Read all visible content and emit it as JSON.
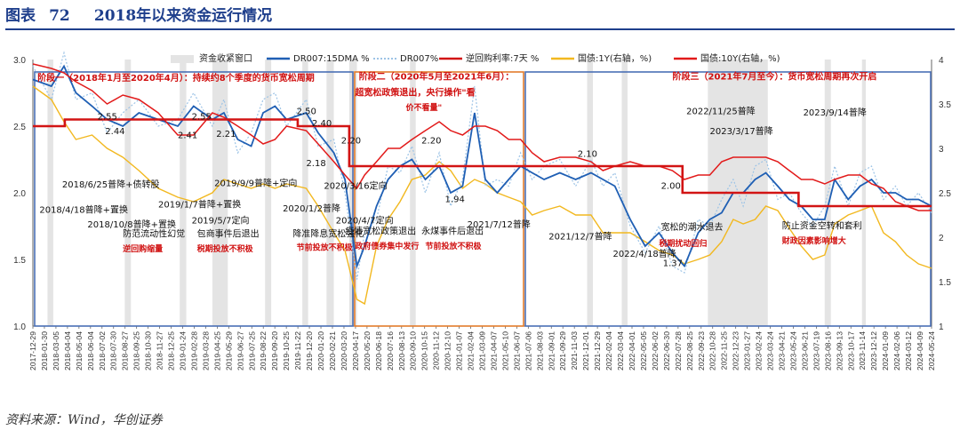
{
  "header": {
    "label": "图表",
    "number": "72",
    "title": "2018年以来资金运行情况"
  },
  "source": "资料来源：Wind，华创证券",
  "chart_data": {
    "type": "line",
    "legend": [
      "资金收紧窗口",
      "DR007:15DMA %",
      "DR007%",
      "逆回购利率:7天 %",
      "国债:1Y(右轴，%)",
      "国债:10Y(右轴，%)"
    ],
    "ylim_left": [
      1.0,
      3.0
    ],
    "yticks_left": [
      "3.0",
      "2.5",
      "2.0",
      "1.5",
      "1.0"
    ],
    "ylim_right": [
      1,
      4
    ],
    "yticks_right": [
      "4",
      "3.5",
      "3",
      "2.5",
      "2",
      "1.5",
      "1"
    ],
    "x_start": "2017-12-29",
    "x_end": "2024-05-24",
    "x_ticks": [
      "2017-12-29",
      "2018-01-30",
      "2018-03-05",
      "2018-04-04",
      "2018-05-04",
      "2018-06-04",
      "2018-07-02",
      "2018-07-30",
      "2018-08-27",
      "2018-09-25",
      "2018-10-30",
      "2018-11-27",
      "2018-12-25",
      "2019-01-24",
      "2019-02-28",
      "2019-03-28",
      "2019-04-25",
      "2019-05-29",
      "2019-06-27",
      "2019-07-25",
      "2019-08-22",
      "2019-09-20",
      "2019-10-25",
      "2019-11-22",
      "2019-12-20",
      "2020-01-20",
      "2020-02-21",
      "2020-03-20",
      "2020-04-17",
      "2020-05-20",
      "2020-06-18",
      "2020-07-16",
      "2020-08-13",
      "2020-09-10",
      "2020-10-15",
      "2020-11-12",
      "2020-12-10",
      "2021-01-07",
      "2021-02-04",
      "2021-03-09",
      "2021-04-07",
      "2021-05-10",
      "2021-06-07",
      "2021-07-06",
      "2021-08-03",
      "2021-09-01",
      "2021-09-29",
      "2021-11-03",
      "2021-12-01",
      "2021-12-29",
      "2022-02-04",
      "2022-03-04",
      "2022-04-01",
      "2022-05-05",
      "2022-06-02",
      "2022-06-30",
      "2022-07-28",
      "2022-08-25",
      "2022-09-23",
      "2022-10-28",
      "2022-11-25",
      "2022-12-23",
      "2023-01-27",
      "2023-02-24",
      "2023-03-24",
      "2023-04-21",
      "2023-05-24",
      "2023-06-21",
      "2023-07-19",
      "2023-08-16",
      "2023-09-13",
      "2023-10-17",
      "2023-11-14",
      "2023-12-12",
      "2024-01-09",
      "2024-02-06",
      "2024-03-12",
      "2024-04-09",
      "2024-05-24"
    ],
    "tightening_windows": [
      [
        "2018-02-05",
        "2018-02-20"
      ],
      [
        "2018-08-25",
        "2018-09-10"
      ],
      [
        "2019-01-15",
        "2019-02-01"
      ],
      [
        "2019-04-10",
        "2019-05-20"
      ],
      [
        "2019-08-25",
        "2019-09-10"
      ],
      [
        "2019-11-30",
        "2019-12-15"
      ],
      [
        "2020-02-01",
        "2020-02-20"
      ],
      [
        "2020-03-31",
        "2020-04-20"
      ],
      [
        "2020-09-05",
        "2020-09-20"
      ],
      [
        "2021-12-10",
        "2021-12-25"
      ],
      [
        "2022-03-10",
        "2022-03-25"
      ],
      [
        "2022-10-20",
        "2023-03-25"
      ],
      [
        "2023-08-20",
        "2023-09-05"
      ],
      [
        "2023-11-25",
        "2023-12-05"
      ]
    ],
    "reverse_repo_7d": {
      "dates": [
        "2017-12-29",
        "2018-03-22",
        "2019-11-18",
        "2020-03-31",
        "2022-08-15",
        "2023-06-13",
        "2023-06-13",
        "2024-05-24"
      ],
      "values": [
        2.5,
        2.55,
        2.5,
        2.2,
        2.0,
        1.9,
        1.9,
        1.9
      ]
    },
    "dr007_15dma": {
      "dates": [
        "2017-12-29",
        "2018-02-15",
        "2018-03-20",
        "2018-04-20",
        "2018-06-01",
        "2018-07-10",
        "2018-08-20",
        "2018-10-01",
        "2018-11-20",
        "2019-01-10",
        "2019-02-20",
        "2019-04-10",
        "2019-05-10",
        "2019-06-15",
        "2019-07-20",
        "2019-08-20",
        "2019-09-20",
        "2019-10-20",
        "2019-12-10",
        "2020-01-10",
        "2020-02-20",
        "2020-03-20",
        "2020-04-20",
        "2020-05-10",
        "2020-06-10",
        "2020-07-10",
        "2020-08-10",
        "2020-09-10",
        "2020-10-15",
        "2020-11-20",
        "2020-12-20",
        "2021-01-20",
        "2021-02-20",
        "2021-03-20",
        "2021-04-20",
        "2021-05-20",
        "2021-06-20",
        "2021-07-20",
        "2021-08-20",
        "2021-09-30",
        "2021-11-10",
        "2021-12-20",
        "2022-01-20",
        "2022-02-20",
        "2022-04-01",
        "2022-05-10",
        "2022-06-15",
        "2022-07-20",
        "2022-08-20",
        "2022-09-25",
        "2022-10-25",
        "2022-11-25",
        "2022-12-25",
        "2023-01-20",
        "2023-02-20",
        "2023-03-20",
        "2023-04-20",
        "2023-05-20",
        "2023-06-20",
        "2023-07-20",
        "2023-08-20",
        "2023-09-15",
        "2023-10-20",
        "2023-11-20",
        "2023-12-20",
        "2024-01-20",
        "2024-02-20",
        "2024-03-20",
        "2024-04-20",
        "2024-05-24"
      ],
      "values": [
        2.85,
        2.8,
        2.95,
        2.75,
        2.65,
        2.55,
        2.5,
        2.6,
        2.55,
        2.5,
        2.65,
        2.55,
        2.6,
        2.4,
        2.35,
        2.6,
        2.65,
        2.55,
        2.6,
        2.45,
        2.3,
        2.1,
        1.45,
        1.6,
        1.9,
        2.1,
        2.2,
        2.25,
        2.1,
        2.2,
        2.0,
        2.05,
        2.6,
        2.1,
        2.0,
        2.1,
        2.2,
        2.15,
        2.1,
        2.15,
        2.1,
        2.15,
        2.1,
        2.05,
        1.8,
        1.6,
        1.7,
        1.55,
        1.45,
        1.7,
        1.8,
        1.85,
        2.0,
        2.0,
        2.1,
        2.15,
        2.05,
        1.95,
        1.9,
        1.8,
        1.8,
        2.1,
        1.95,
        2.05,
        2.1,
        2.0,
        2.0,
        1.95,
        1.95,
        1.9
      ]
    },
    "dr007": {
      "dates": [
        "2017-12-29",
        "2018-02-15",
        "2018-03-20",
        "2018-04-20",
        "2018-06-01",
        "2018-07-10",
        "2018-08-20",
        "2018-10-01",
        "2018-11-20",
        "2019-01-10",
        "2019-02-20",
        "2019-04-10",
        "2019-05-10",
        "2019-06-15",
        "2019-07-20",
        "2019-08-20",
        "2019-09-20",
        "2019-10-20",
        "2019-12-10",
        "2020-01-10",
        "2020-02-20",
        "2020-03-20",
        "2020-04-20",
        "2020-05-10",
        "2020-06-10",
        "2020-07-10",
        "2020-08-10",
        "2020-09-10",
        "2020-10-15",
        "2020-11-20",
        "2020-12-20",
        "2021-01-20",
        "2021-02-20",
        "2021-03-20",
        "2021-04-20",
        "2021-05-20",
        "2021-06-20",
        "2021-07-20",
        "2021-08-20",
        "2021-09-30",
        "2021-11-10",
        "2021-12-20",
        "2022-01-20",
        "2022-02-20",
        "2022-04-01",
        "2022-05-10",
        "2022-06-15",
        "2022-07-20",
        "2022-08-20",
        "2022-09-25",
        "2022-10-25",
        "2022-11-25",
        "2022-12-25",
        "2023-01-20",
        "2023-02-20",
        "2023-03-20",
        "2023-04-20",
        "2023-05-20",
        "2023-06-20",
        "2023-07-20",
        "2023-08-20",
        "2023-09-15",
        "2023-10-20",
        "2023-11-20",
        "2023-12-20",
        "2024-01-20",
        "2024-02-20",
        "2024-03-20",
        "2024-04-20",
        "2024-05-24"
      ],
      "values": [
        2.95,
        2.7,
        3.05,
        2.7,
        2.75,
        2.45,
        2.6,
        2.7,
        2.5,
        2.55,
        2.75,
        2.5,
        2.7,
        2.3,
        2.45,
        2.7,
        2.75,
        2.5,
        2.7,
        2.35,
        2.4,
        2.0,
        1.35,
        1.7,
        1.8,
        2.2,
        2.15,
        2.35,
        2.0,
        2.3,
        1.9,
        2.1,
        2.8,
        2.05,
        2.1,
        2.05,
        2.3,
        2.1,
        2.2,
        2.25,
        2.05,
        2.25,
        2.05,
        2.15,
        1.75,
        1.55,
        1.75,
        1.45,
        1.4,
        1.8,
        1.75,
        1.95,
        2.1,
        1.9,
        2.2,
        2.25,
        1.95,
        2.0,
        1.85,
        1.75,
        1.9,
        2.2,
        1.9,
        2.15,
        2.2,
        1.95,
        2.05,
        1.9,
        2.0,
        1.85
      ]
    },
    "cgb_1y_right": {
      "dates": [
        "2017-12-29",
        "2018-02-15",
        "2018-03-20",
        "2018-04-20",
        "2018-06-01",
        "2018-07-10",
        "2018-08-20",
        "2018-10-01",
        "2018-11-20",
        "2019-01-10",
        "2019-02-20",
        "2019-04-10",
        "2019-05-10",
        "2019-06-15",
        "2019-07-20",
        "2019-08-20",
        "2019-09-20",
        "2019-10-20",
        "2019-12-10",
        "2020-01-10",
        "2020-02-20",
        "2020-03-20",
        "2020-04-20",
        "2020-05-10",
        "2020-06-10",
        "2020-07-10",
        "2020-08-10",
        "2020-09-10",
        "2020-10-15",
        "2020-11-20",
        "2020-12-20",
        "2021-01-20",
        "2021-02-20",
        "2021-03-20",
        "2021-04-20",
        "2021-05-20",
        "2021-06-20",
        "2021-07-20",
        "2021-08-20",
        "2021-09-30",
        "2021-11-10",
        "2021-12-20",
        "2022-01-20",
        "2022-02-20",
        "2022-04-01",
        "2022-05-10",
        "2022-06-15",
        "2022-07-20",
        "2022-08-20",
        "2022-09-25",
        "2022-10-25",
        "2022-11-25",
        "2022-12-25",
        "2023-01-20",
        "2023-02-20",
        "2023-03-20",
        "2023-04-20",
        "2023-05-20",
        "2023-06-20",
        "2023-07-20",
        "2023-08-20",
        "2023-09-15",
        "2023-10-20",
        "2023-11-20",
        "2023-12-20",
        "2024-01-20",
        "2024-02-20",
        "2024-03-20",
        "2024-04-20",
        "2024-05-24"
      ],
      "values": [
        3.7,
        3.55,
        3.3,
        3.1,
        3.15,
        3.0,
        2.9,
        2.75,
        2.55,
        2.45,
        2.4,
        2.5,
        2.65,
        2.6,
        2.55,
        2.6,
        2.55,
        2.6,
        2.55,
        2.35,
        2.05,
        1.85,
        1.3,
        1.25,
        1.9,
        2.2,
        2.4,
        2.65,
        2.7,
        2.85,
        2.75,
        2.55,
        2.65,
        2.6,
        2.5,
        2.45,
        2.4,
        2.25,
        2.3,
        2.35,
        2.25,
        2.25,
        2.05,
        2.05,
        2.05,
        1.95,
        1.85,
        1.8,
        1.7,
        1.75,
        1.8,
        1.95,
        2.2,
        2.15,
        2.2,
        2.35,
        2.3,
        2.1,
        1.9,
        1.75,
        1.8,
        2.15,
        2.25,
        2.3,
        2.35,
        2.05,
        1.95,
        1.8,
        1.7,
        1.65
      ]
    },
    "cgb_10y_right": {
      "dates": [
        "2017-12-29",
        "2018-02-15",
        "2018-03-20",
        "2018-04-20",
        "2018-06-01",
        "2018-07-10",
        "2018-08-20",
        "2018-10-01",
        "2018-11-20",
        "2019-01-10",
        "2019-02-20",
        "2019-04-10",
        "2019-05-10",
        "2019-06-15",
        "2019-07-20",
        "2019-08-20",
        "2019-09-20",
        "2019-10-20",
        "2019-12-10",
        "2020-01-10",
        "2020-02-20",
        "2020-03-20",
        "2020-04-20",
        "2020-05-10",
        "2020-06-10",
        "2020-07-10",
        "2020-08-10",
        "2020-09-10",
        "2020-10-15",
        "2020-11-20",
        "2020-12-20",
        "2021-01-20",
        "2021-02-20",
        "2021-03-20",
        "2021-04-20",
        "2021-05-20",
        "2021-06-20",
        "2021-07-20",
        "2021-08-20",
        "2021-09-30",
        "2021-11-10",
        "2021-12-20",
        "2022-01-20",
        "2022-02-20",
        "2022-04-01",
        "2022-05-10",
        "2022-06-15",
        "2022-07-20",
        "2022-08-20",
        "2022-09-25",
        "2022-10-25",
        "2022-11-25",
        "2022-12-25",
        "2023-01-20",
        "2023-02-20",
        "2023-03-20",
        "2023-04-20",
        "2023-05-20",
        "2023-06-20",
        "2023-07-20",
        "2023-08-20",
        "2023-09-15",
        "2023-10-20",
        "2023-11-20",
        "2023-12-20",
        "2024-01-20",
        "2024-02-20",
        "2024-03-20",
        "2024-04-20",
        "2024-05-24"
      ],
      "values": [
        3.95,
        3.9,
        3.85,
        3.75,
        3.65,
        3.5,
        3.6,
        3.55,
        3.4,
        3.15,
        3.15,
        3.4,
        3.35,
        3.25,
        3.15,
        3.05,
        3.1,
        3.25,
        3.2,
        3.05,
        2.85,
        2.7,
        2.55,
        2.7,
        2.85,
        3.0,
        3.0,
        3.1,
        3.2,
        3.3,
        3.2,
        3.15,
        3.25,
        3.25,
        3.2,
        3.1,
        3.1,
        2.95,
        2.85,
        2.9,
        2.9,
        2.85,
        2.75,
        2.8,
        2.85,
        2.8,
        2.8,
        2.75,
        2.65,
        2.7,
        2.7,
        2.85,
        2.9,
        2.9,
        2.9,
        2.9,
        2.85,
        2.75,
        2.65,
        2.65,
        2.6,
        2.65,
        2.7,
        2.7,
        2.6,
        2.55,
        2.4,
        2.35,
        2.3,
        2.3
      ]
    },
    "annotations_black": [
      {
        "text": "2.55",
        "date": "2018-06-15",
        "y": 2.55
      },
      {
        "text": "2.55",
        "date": "2019-02-15",
        "y": 2.55
      },
      {
        "text": "2.44",
        "date": "2018-07-05",
        "y": 2.44
      },
      {
        "text": "2.41",
        "date": "2019-01-10",
        "y": 2.41
      },
      {
        "text": "2.21",
        "date": "2019-04-20",
        "y": 2.42
      },
      {
        "text": "2.50",
        "date": "2019-11-15",
        "y": 2.59
      },
      {
        "text": "2.40",
        "date": "2019-12-25",
        "y": 2.5
      },
      {
        "text": "2.18",
        "date": "2019-12-10",
        "y": 2.2
      },
      {
        "text": "2.20",
        "date": "2020-03-10",
        "y": 2.37
      },
      {
        "text": "2.20",
        "date": "2020-10-05",
        "y": 2.37
      },
      {
        "text": "1.94",
        "date": "2020-12-05",
        "y": 1.93
      },
      {
        "text": "2.10",
        "date": "2021-11-15",
        "y": 2.27
      },
      {
        "text": "2.00",
        "date": "2022-06-20",
        "y": 2.03
      },
      {
        "text": "1.37",
        "date": "2022-06-25",
        "y": 1.45
      },
      {
        "text": "2018/6/25普降+债转股",
        "date": "2018-03-15",
        "y": 2.04
      },
      {
        "text": "2018/4/18普降+置换",
        "date": "2018-01-15",
        "y": 1.85
      },
      {
        "text": "2019/1/7普降+置换",
        "date": "2018-11-20",
        "y": 1.89
      },
      {
        "text": "2018/10/8普降+置换",
        "date": "2018-05-20",
        "y": 1.74
      },
      {
        "text": "2019/5/7定向",
        "date": "2019-02-15",
        "y": 1.77
      },
      {
        "text": "2019/9/9普降+定向",
        "date": "2019-04-15",
        "y": 2.05
      },
      {
        "text": "2020/1/2普降",
        "date": "2019-10-10",
        "y": 1.86
      },
      {
        "text": "2020/3/16定向",
        "date": "2020-01-25",
        "y": 2.03
      },
      {
        "text": "2020/4/7定向",
        "date": "2020-02-25",
        "y": 1.77
      },
      {
        "text": "2021/7/12普降",
        "date": "2021-02-01",
        "y": 1.74
      },
      {
        "text": "2021/12/7普降",
        "date": "2021-09-01",
        "y": 1.65
      },
      {
        "text": "2022/4/18普降",
        "date": "2022-02-15",
        "y": 1.52
      },
      {
        "text": "2022/11/25普降",
        "date": "2022-08-25",
        "y": 2.59
      },
      {
        "text": "2023/3/17普降",
        "date": "2022-10-25",
        "y": 2.44
      },
      {
        "text": "2023/9/14普降",
        "date": "2023-06-25",
        "y": 2.58
      },
      {
        "text": "防范流动性幻觉",
        "date": "2018-08-20",
        "y": 1.67
      },
      {
        "text": "包商事件后退出",
        "date": "2019-03-01",
        "y": 1.67
      },
      {
        "text": "降准降息宽松强化",
        "date": "2019-11-05",
        "y": 1.67
      },
      {
        "text": "疫情宽松政策退出",
        "date": "2020-03-20",
        "y": 1.69
      },
      {
        "text": "永煤事件后退出",
        "date": "2020-10-05",
        "y": 1.69
      },
      {
        "text": "宽松的潮水退去",
        "date": "2022-06-20",
        "y": 1.72
      },
      {
        "text": "防止资金空转和套利",
        "date": "2023-05-01",
        "y": 1.73
      }
    ],
    "annotations_red": [
      {
        "text": "阶段一（2018年1月至2020年4月）：持续约8个季度的货币宽松周期",
        "date": "2018-01-10",
        "y": 2.84
      },
      {
        "text": "阶段二（2020年5月至2021年6月）：",
        "date": "2020-04-25",
        "y": 2.85
      },
      {
        "text": "超宽松政策退出，央行操作\"看",
        "date": "2020-04-15",
        "y": 2.73
      },
      {
        "text": "价不看量\"",
        "date": "2020-08-25",
        "y": 2.62
      },
      {
        "text": "阶段三（2021年7月至今）：货币宽松周期再次开启",
        "date": "2022-07-20",
        "y": 2.85
      },
      {
        "text": "逆回购缩量",
        "date": "2018-08-20",
        "y": 1.56
      },
      {
        "text": "税期投放不积极",
        "date": "2019-03-01",
        "y": 1.56
      },
      {
        "text": "节前投放不积极",
        "date": "2019-11-15",
        "y": 1.57
      },
      {
        "text": "政府债券集中发行",
        "date": "2020-04-15",
        "y": 1.58
      },
      {
        "text": "节前投放不积极",
        "date": "2020-10-15",
        "y": 1.58
      },
      {
        "text": "税期扰动回归",
        "date": "2022-06-15",
        "y": 1.6
      },
      {
        "text": "财政因素影响增大",
        "date": "2023-05-01",
        "y": 1.62
      }
    ]
  }
}
